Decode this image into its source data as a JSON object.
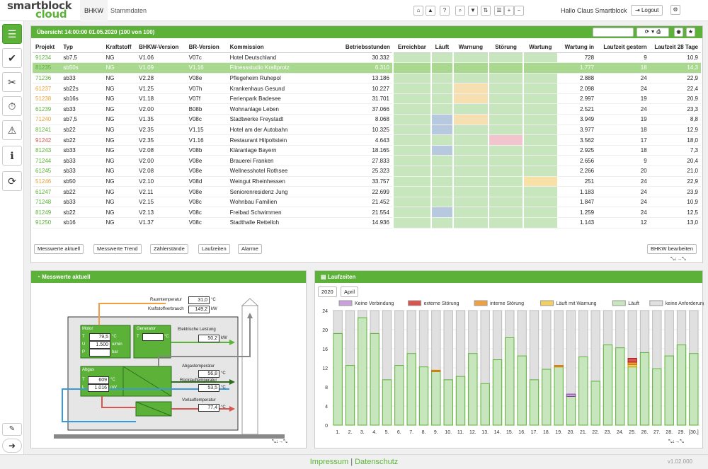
{
  "app": {
    "logo_line1": "smartblock",
    "logo_line2": "cloud",
    "version": "v1.02.000"
  },
  "nav": {
    "tab1": "BHKW",
    "tab2": "Stammdaten",
    "hello": "Hallo Claus Smartblock",
    "logout": "Logout"
  },
  "overview": {
    "title": "Übersicht  14:00:00  01.05.2020  (100 von 100)",
    "columns": [
      "Projekt",
      "Typ",
      "Kraftstoff",
      "BHKW-Version",
      "BR-Version",
      "Kommission",
      "Betriebsstunden",
      "Erreichbar",
      "Läuft",
      "Warnung",
      "Störung",
      "Wartung",
      "Wartung in",
      "Laufzeit gestern",
      "Laufzeit 28 Tage"
    ],
    "rows": [
      [
        "91234",
        "sb7,5",
        "NG",
        "V1.06",
        "V07c",
        "Hotel Deutschland",
        "30.332",
        "g",
        "g",
        "g",
        "g",
        "g",
        "728",
        "9",
        "10,9"
      ],
      [
        "81235",
        "sb50s",
        "NG",
        "V1.09",
        "V1.16",
        "Fitnessstudio Kraftprotz",
        "6.310",
        "g",
        "g",
        "g",
        "g",
        "g",
        "1.777",
        "18",
        "14,3"
      ],
      [
        "71236",
        "sb33",
        "NG",
        "V2.28",
        "V08e",
        "Pflegeheim Ruhepol",
        "13.186",
        "g",
        "g",
        "g",
        "g",
        "g",
        "2.888",
        "24",
        "22,9"
      ],
      [
        "61237",
        "sb22s",
        "NG",
        "V1.25",
        "V07h",
        "Krankenhaus Gesund",
        "10.227",
        "g",
        "g",
        "o",
        "g",
        "g",
        "2.098",
        "24",
        "22,4"
      ],
      [
        "51238",
        "sb16s",
        "NG",
        "V1.18",
        "V07f",
        "Ferienpark Badesee",
        "31.701",
        "g",
        "g",
        "o",
        "g",
        "g",
        "2.997",
        "19",
        "20,9"
      ],
      [
        "61239",
        "sb33",
        "NG",
        "V2.00",
        "B08b",
        "Wohnanlage Leben",
        "37.066",
        "g",
        "g",
        "g",
        "g",
        "g",
        "2.521",
        "24",
        "23,3"
      ],
      [
        "71240",
        "sb7,5",
        "NG",
        "V1.35",
        "V08c",
        "Stadtwerke Freystadt",
        "8.068",
        "g",
        "b",
        "o",
        "g",
        "g",
        "3.949",
        "19",
        "8,8"
      ],
      [
        "81241",
        "sb22",
        "NG",
        "V2.35",
        "V1.15",
        "Hotel am der Autobahn",
        "10.325",
        "g",
        "b",
        "g",
        "g",
        "g",
        "3.977",
        "18",
        "12,9"
      ],
      [
        "91242",
        "sb22",
        "NG",
        "V2.35",
        "V1.16",
        "Restaurant Hilpoltstein",
        "4.643",
        "g",
        "g",
        "g",
        "r",
        "g",
        "3.562",
        "17",
        "18,0"
      ],
      [
        "81243",
        "sb33",
        "NG",
        "V2.08",
        "V08b",
        "Kläranlage Bayern",
        "18.165",
        "g",
        "b",
        "g",
        "g",
        "g",
        "2.925",
        "18",
        "7,3"
      ],
      [
        "71244",
        "sb33",
        "NG",
        "V2.00",
        "V08e",
        "Brauerei Franken",
        "27.833",
        "g",
        "g",
        "g",
        "g",
        "g",
        "2.656",
        "9",
        "20,4"
      ],
      [
        "61245",
        "sb33",
        "NG",
        "V2.08",
        "V08e",
        "Wellnesshotel Rothsee",
        "25.323",
        "g",
        "g",
        "g",
        "g",
        "g",
        "2.266",
        "20",
        "21,0"
      ],
      [
        "51246",
        "sb50",
        "NG",
        "V2.10",
        "V08d",
        "Weingut Rheinhessen",
        "33.757",
        "g",
        "g",
        "g",
        "g",
        "y",
        "251",
        "24",
        "22,9"
      ],
      [
        "61247",
        "sb22",
        "NG",
        "V2.11",
        "V08e",
        "Seniorenresidenz Jung",
        "22.699",
        "g",
        "g",
        "g",
        "g",
        "g",
        "1.183",
        "24",
        "23,9"
      ],
      [
        "71248",
        "sb33",
        "NG",
        "V2.15",
        "V08c",
        "Wohnbau Familien",
        "21.452",
        "g",
        "g",
        "g",
        "g",
        "g",
        "1.847",
        "24",
        "10,9"
      ],
      [
        "81249",
        "sb22",
        "NG",
        "V2.13",
        "V08c",
        "Freibad Schwimmen",
        "21.554",
        "g",
        "b",
        "g",
        "g",
        "g",
        "1.259",
        "24",
        "12,5"
      ],
      [
        "91250",
        "sb16",
        "NG",
        "V1.37",
        "V08c",
        "Stadthalle Rettelloh",
        "14.936",
        "g",
        "g",
        "g",
        "g",
        "g",
        "1.143",
        "12",
        "13,0"
      ]
    ],
    "proj_colors": [
      "#5cb238",
      "#5cb238",
      "#5cb238",
      "#e8a23a",
      "#e8a23a",
      "#5cb238",
      "#e8a23a",
      "#5cb238",
      "#d9534f",
      "#5cb238",
      "#5cb238",
      "#5cb238",
      "#e8a23a",
      "#5cb238",
      "#5cb238",
      "#5cb238",
      "#5cb238"
    ],
    "buttons": [
      "Messwerte aktuell",
      "Messwerte Trend",
      "Zählerstände",
      "Laufzeiten",
      "Alarme"
    ],
    "edit": "BHKW bearbeiten"
  },
  "cells": {
    "g": "#c8e6bd",
    "o": "#f6dfb0",
    "b": "#b6c9de",
    "r": "#f2c4cd",
    "y": "#f7e1a6"
  },
  "messwerte": {
    "title": "Messwerte aktuell",
    "raum_label": "Raumtemperatur",
    "raum_val": "31,0",
    "raum_unit": "°C",
    "kraft_label": "Kraftstoffverbrauch",
    "kraft_val": "149,2",
    "kraft_unit": "kW",
    "motor": "Motor",
    "gen": "Generator",
    "T": "T",
    "U": "U",
    "P": "P",
    "motor_T": "79,5",
    "motor_T_unit": "°C",
    "motor_U": "1.500",
    "motor_U_unit": "u/min",
    "motor_P": "",
    "motor_P_unit": "bar",
    "gen_T": "",
    "gen_T_unit": "°C",
    "el_label": "Elektrische Leistung",
    "el_val": "50,2",
    "el_unit": "kW",
    "abgas": "Abgas",
    "L": "L",
    "abgas_T": "609",
    "abgas_T_unit": "°C",
    "abgas_L": "1.016",
    "abgas_L_unit": "mV",
    "abgt_label": "Abgastemperatur",
    "abgt_val": "56,8",
    "abgt_unit": "°C",
    "rueck_label": "Rücklauftemperatur",
    "rueck_val": "53,5",
    "rueck_unit": "°C",
    "vor_label": "Vorlauftemperatur",
    "vor_val": "77,4",
    "vor_unit": "°C"
  },
  "laufzeiten": {
    "title": "Laufzeiten",
    "year": "2020",
    "month": "April"
  },
  "chart_data": {
    "type": "bar",
    "stacked": true,
    "legend": [
      "Keine Verbindung",
      "externe Störung",
      "interne Störung",
      "Läuft mit Warnung",
      "Läuft",
      "keine Anforderung"
    ],
    "legend_colors": [
      "#c9a0dc",
      "#d9534f",
      "#f0a040",
      "#f2d060",
      "#c8e6bd",
      "#e0e0e0"
    ],
    "categories": [
      "1.",
      "2.",
      "3.",
      "4.",
      "5.",
      "6.",
      "7.",
      "8.",
      "9.",
      "10.",
      "11.",
      "12.",
      "13.",
      "14.",
      "15.",
      "16.",
      "17.",
      "18.",
      "19.",
      "20.",
      "21.",
      "22.",
      "23.",
      "24.",
      "25.",
      "26.",
      "27.",
      "28.",
      "29.",
      "[30.]"
    ],
    "laeuft": [
      19.2,
      12.5,
      22.5,
      19.2,
      9.5,
      12.5,
      15,
      12.2,
      11.2,
      9.5,
      10.2,
      15,
      8.7,
      13.7,
      18.3,
      14.5,
      9.5,
      11.7,
      12.2,
      6,
      14.3,
      9.2,
      16.8,
      16.2,
      12.2,
      15.2,
      11.8,
      14.5,
      16.8,
      15
    ],
    "warnung": [
      0,
      0,
      0,
      0,
      0,
      0,
      0,
      0,
      0,
      0,
      0,
      0,
      0,
      0,
      0,
      0,
      0,
      0,
      0,
      0,
      0,
      0,
      0,
      0,
      0.5,
      0,
      0,
      0,
      0,
      0
    ],
    "intern": [
      0,
      0,
      0,
      0,
      0,
      0,
      0,
      0,
      0.3,
      0,
      0,
      0,
      0,
      0,
      0,
      0,
      0,
      0,
      0.3,
      0,
      0,
      0,
      0,
      0,
      0.5,
      0,
      0,
      0,
      0,
      0
    ],
    "extern": [
      0,
      0,
      0,
      0,
      0,
      0,
      0,
      0,
      0,
      0,
      0,
      0,
      0,
      0,
      0,
      0,
      0,
      0,
      0,
      0,
      0,
      0,
      0,
      0,
      0.8,
      0,
      0,
      0,
      0,
      0
    ],
    "keine_verbindung": [
      0,
      0,
      0,
      0,
      0,
      0,
      0,
      0,
      0,
      0,
      0,
      0,
      0,
      0,
      0,
      0,
      0,
      0,
      0,
      0.5,
      0,
      0,
      0,
      0,
      0,
      0,
      0,
      0,
      0,
      0
    ],
    "ylim": [
      0,
      24
    ],
    "yticks": [
      0,
      4,
      8,
      12,
      16,
      20,
      24
    ]
  },
  "footer": {
    "impressum": "Impressum",
    "sep": "|",
    "datenschutz": "Datenschutz"
  }
}
